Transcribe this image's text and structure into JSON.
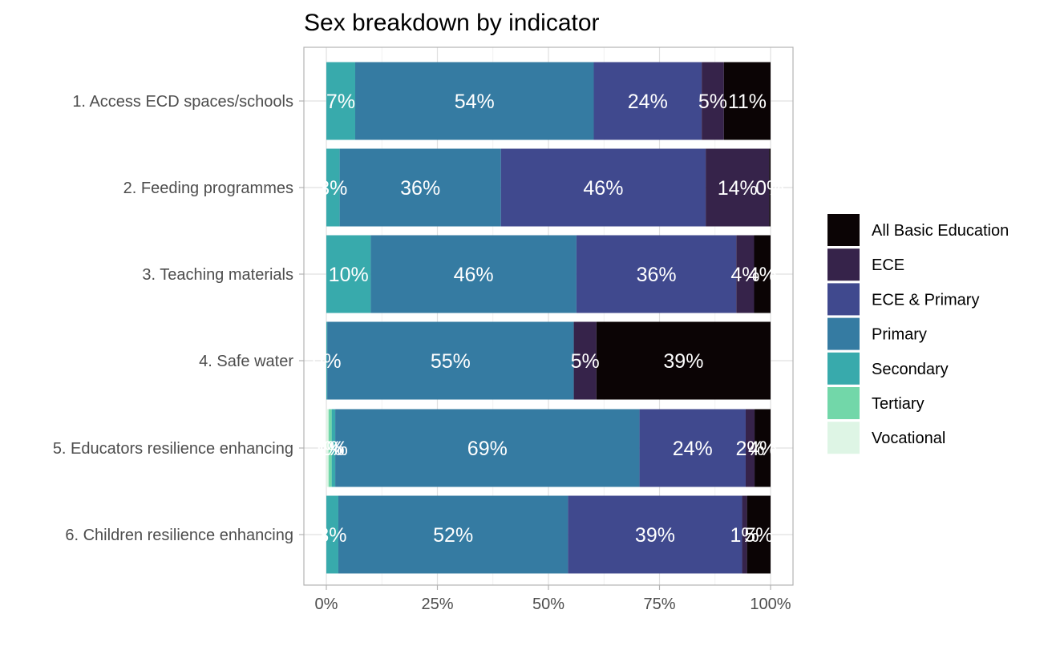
{
  "chart_data": {
    "type": "bar",
    "orientation": "horizontal",
    "stacked": true,
    "normalized": true,
    "title": "Sex breakdown by indicator",
    "xlabel": "",
    "ylabel": "",
    "xlim": [
      0,
      1
    ],
    "x_ticks": [
      "0%",
      "25%",
      "50%",
      "75%",
      "100%"
    ],
    "x_tick_values": [
      0,
      0.25,
      0.5,
      0.75,
      1.0
    ],
    "grid": true,
    "legend_position": "right",
    "categories": [
      "1. Access ECD spaces/schools",
      "2. Feeding programmes",
      "3. Teaching materials",
      "4. Safe water",
      "5. Educators resilience enhancing",
      "6. Children resilience enhancing"
    ],
    "series": [
      {
        "name": "Vocational",
        "color": "#DEF5E5",
        "values": [
          0,
          0,
          0,
          0,
          0.005,
          0
        ]
      },
      {
        "name": "Tertiary",
        "color": "#72D7A9",
        "values": [
          0,
          0,
          0,
          0,
          0.007,
          0
        ]
      },
      {
        "name": "Secondary",
        "color": "#38AAAC",
        "values": [
          0.065,
          0.03,
          0.1,
          0.002,
          0.008,
          0.027
        ]
      },
      {
        "name": "Primary",
        "color": "#357BA2",
        "values": [
          0.537,
          0.363,
          0.463,
          0.555,
          0.685,
          0.517
        ]
      },
      {
        "name": "ECE & Primary",
        "color": "#40498E",
        "values": [
          0.243,
          0.461,
          0.36,
          0,
          0.239,
          0.392
        ]
      },
      {
        "name": "ECE",
        "color": "#36234A",
        "values": [
          0.05,
          0.143,
          0.04,
          0.051,
          0.02,
          0.011
        ]
      },
      {
        "name": "All Basic Education",
        "color": "#0B0405",
        "values": [
          0.105,
          0.003,
          0.037,
          0.392,
          0.036,
          0.053
        ]
      }
    ],
    "data_labels": [
      [
        "",
        "",
        "7%",
        "54%",
        "24%",
        "5%",
        "11%"
      ],
      [
        "",
        "",
        "3%",
        "36%",
        "46%",
        "14%",
        "0%"
      ],
      [
        "",
        "",
        "10%",
        "46%",
        "36%",
        "4%",
        "4%"
      ],
      [
        "",
        "",
        "0%",
        "55%",
        "",
        "5%",
        "39%"
      ],
      [
        "1%",
        "1%",
        "1%",
        "69%",
        "24%",
        "2%",
        "4%"
      ],
      [
        "",
        "",
        "3%",
        "52%",
        "39%",
        "1%",
        "5%"
      ]
    ],
    "legend_order": [
      "All Basic Education",
      "ECE",
      "ECE & Primary",
      "Primary",
      "Secondary",
      "Tertiary",
      "Vocational"
    ]
  }
}
